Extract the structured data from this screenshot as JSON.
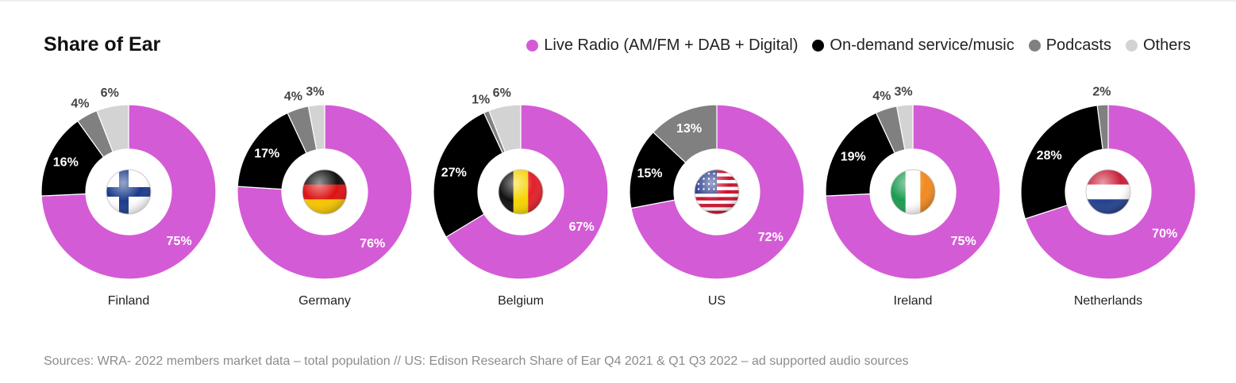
{
  "header": {
    "title": "Share of Ear"
  },
  "legend": [
    {
      "label": "Live Radio (AM/FM + DAB + Digital)",
      "color": "#d45bd6"
    },
    {
      "label": "On-demand service/music",
      "color": "#000000"
    },
    {
      "label": "Podcasts",
      "color": "#808080"
    },
    {
      "label": "Others",
      "color": "#d3d3d3"
    }
  ],
  "chart_data": {
    "type": "pie",
    "variant": "donut",
    "title": "Share of Ear",
    "series_names": [
      "Live Radio (AM/FM + DAB + Digital)",
      "On-demand service/music",
      "Podcasts",
      "Others"
    ],
    "series_colors": [
      "#d45bd6",
      "#000000",
      "#808080",
      "#d3d3d3"
    ],
    "charts": [
      {
        "country": "Finland",
        "flag": "finland-flag",
        "values": [
          75,
          16,
          4,
          6
        ],
        "labels": [
          "75%",
          "16%",
          "4%",
          "6%"
        ]
      },
      {
        "country": "Germany",
        "flag": "germany-flag",
        "values": [
          76,
          17,
          4,
          3
        ],
        "labels": [
          "76%",
          "17%",
          "4%",
          "3%"
        ]
      },
      {
        "country": "Belgium",
        "flag": "belgium-flag",
        "values": [
          67,
          27,
          1,
          6
        ],
        "labels": [
          "67%",
          "27%",
          "1%",
          "6%"
        ]
      },
      {
        "country": "US",
        "flag": "us-flag",
        "values": [
          72,
          15,
          13,
          0
        ],
        "labels": [
          "72%",
          "15%",
          "13%",
          ""
        ]
      },
      {
        "country": "Ireland",
        "flag": "ireland-flag",
        "values": [
          75,
          19,
          4,
          3
        ],
        "labels": [
          "75%",
          "19%",
          "4%",
          "3%"
        ]
      },
      {
        "country": "Netherlands",
        "flag": "netherlands-flag",
        "values": [
          70,
          28,
          2,
          0
        ],
        "labels": [
          "70%",
          "28%",
          "2%",
          ""
        ]
      }
    ]
  },
  "footer": {
    "source": "Sources: WRA- 2022 members market data – total population // US: Edison Research Share of Ear Q4 2021 & Q1 Q3 2022 – ad supported audio sources"
  }
}
